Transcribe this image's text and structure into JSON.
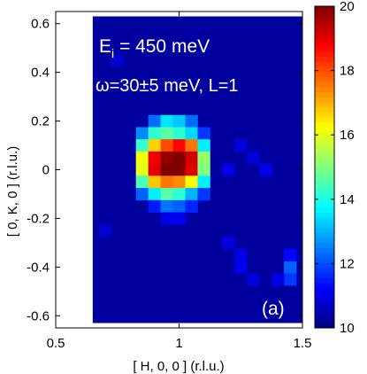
{
  "chart_data": {
    "type": "heatmap",
    "xlabel": "[ H, 0, 0 ]  (r.l.u.)",
    "ylabel": "[ 0, K, 0 ]  (r.l.u.)",
    "xlim": [
      0.5,
      1.5
    ],
    "ylim": [
      -0.65,
      0.65
    ],
    "x_ticks": [
      0.5,
      1,
      1.5
    ],
    "x_tick_labels": [
      "0.5",
      "1",
      "1.5"
    ],
    "y_ticks": [
      0.6,
      0.4,
      0.2,
      0,
      -0.2,
      -0.4,
      -0.6
    ],
    "y_tick_labels": [
      "0.6",
      "0.4",
      "0.2",
      "0",
      "-0.2",
      "-0.4",
      "-0.6"
    ],
    "colorbar": {
      "range": [
        10,
        20
      ],
      "ticks": [
        10,
        12,
        14,
        16,
        18,
        20
      ],
      "tick_labels": [
        "10",
        "12",
        "14",
        "16",
        "18",
        "20"
      ],
      "colormap": "jet"
    },
    "data_x_range": [
      0.65,
      1.5
    ],
    "data_y_range": [
      -0.63,
      0.63
    ],
    "background_value": 10.3,
    "cells": [
      {
        "h": 0.9,
        "k": 0.2,
        "v": 12.3
      },
      {
        "h": 0.95,
        "k": 0.2,
        "v": 13.5
      },
      {
        "h": 1.0,
        "k": 0.2,
        "v": 13.2
      },
      {
        "h": 1.05,
        "k": 0.2,
        "v": 12.3
      },
      {
        "h": 0.85,
        "k": 0.15,
        "v": 12.6
      },
      {
        "h": 0.9,
        "k": 0.15,
        "v": 14.2
      },
      {
        "h": 0.95,
        "k": 0.15,
        "v": 14.6
      },
      {
        "h": 1.0,
        "k": 0.15,
        "v": 14.2
      },
      {
        "h": 1.05,
        "k": 0.15,
        "v": 13.4
      },
      {
        "h": 1.1,
        "k": 0.15,
        "v": 11.8
      },
      {
        "h": 0.85,
        "k": 0.1,
        "v": 14.3
      },
      {
        "h": 0.9,
        "k": 0.1,
        "v": 16.7
      },
      {
        "h": 0.95,
        "k": 0.1,
        "v": 18.0
      },
      {
        "h": 1.0,
        "k": 0.1,
        "v": 18.7
      },
      {
        "h": 1.05,
        "k": 0.1,
        "v": 17.6
      },
      {
        "h": 1.1,
        "k": 0.1,
        "v": 13.6
      },
      {
        "h": 0.85,
        "k": 0.05,
        "v": 16.1
      },
      {
        "h": 0.9,
        "k": 0.05,
        "v": 18.9
      },
      {
        "h": 0.95,
        "k": 0.05,
        "v": 19.8
      },
      {
        "h": 1.0,
        "k": 0.05,
        "v": 20.0
      },
      {
        "h": 1.05,
        "k": 0.05,
        "v": 19.2
      },
      {
        "h": 1.1,
        "k": 0.05,
        "v": 15.2
      },
      {
        "h": 0.85,
        "k": 0.0,
        "v": 16.0
      },
      {
        "h": 0.9,
        "k": 0.0,
        "v": 19.0
      },
      {
        "h": 0.95,
        "k": 0.0,
        "v": 20.0
      },
      {
        "h": 1.0,
        "k": 0.0,
        "v": 20.0
      },
      {
        "h": 1.05,
        "k": 0.0,
        "v": 19.0
      },
      {
        "h": 1.1,
        "k": 0.0,
        "v": 15.0
      },
      {
        "h": 0.85,
        "k": -0.05,
        "v": 14.5
      },
      {
        "h": 0.9,
        "k": -0.05,
        "v": 16.8
      },
      {
        "h": 0.95,
        "k": -0.05,
        "v": 17.6
      },
      {
        "h": 1.0,
        "k": -0.05,
        "v": 17.4
      },
      {
        "h": 1.05,
        "k": -0.05,
        "v": 16.2
      },
      {
        "h": 1.1,
        "k": -0.05,
        "v": 13.6
      },
      {
        "h": 0.85,
        "k": -0.1,
        "v": 12.2
      },
      {
        "h": 0.9,
        "k": -0.1,
        "v": 13.6
      },
      {
        "h": 0.95,
        "k": -0.1,
        "v": 14.6
      },
      {
        "h": 1.0,
        "k": -0.1,
        "v": 14.2
      },
      {
        "h": 1.05,
        "k": -0.1,
        "v": 13.0
      },
      {
        "h": 1.1,
        "k": -0.1,
        "v": 11.8
      },
      {
        "h": 0.9,
        "k": -0.15,
        "v": 11.5
      },
      {
        "h": 0.95,
        "k": -0.15,
        "v": 12.4
      },
      {
        "h": 1.0,
        "k": -0.15,
        "v": 12.2
      },
      {
        "h": 1.05,
        "k": -0.15,
        "v": 11.6
      },
      {
        "h": 0.95,
        "k": -0.2,
        "v": 11.0
      },
      {
        "h": 1.0,
        "k": -0.2,
        "v": 11.1
      },
      {
        "h": 1.2,
        "k": 0.0,
        "v": 11.0
      },
      {
        "h": 1.25,
        "k": 0.1,
        "v": 10.9
      },
      {
        "h": 1.3,
        "k": 0.05,
        "v": 10.9
      },
      {
        "h": 1.35,
        "k": 0.0,
        "v": 11.0
      },
      {
        "h": 1.2,
        "k": -0.3,
        "v": 10.9
      },
      {
        "h": 1.25,
        "k": -0.35,
        "v": 11.0
      },
      {
        "h": 1.25,
        "k": -0.4,
        "v": 11.1
      },
      {
        "h": 1.3,
        "k": -0.45,
        "v": 10.9
      },
      {
        "h": 1.45,
        "k": -0.4,
        "v": 12.2
      },
      {
        "h": 1.45,
        "k": -0.45,
        "v": 11.8
      },
      {
        "h": 1.45,
        "k": -0.35,
        "v": 11.3
      },
      {
        "h": 1.4,
        "k": -0.45,
        "v": 11.0
      },
      {
        "h": 0.75,
        "k": 0.45,
        "v": 10.8
      },
      {
        "h": 0.7,
        "k": -0.25,
        "v": 10.8
      }
    ]
  },
  "annotations": {
    "energy_prefix": "E",
    "energy_sub": "i",
    "energy_rest": " = 450 meV",
    "conditions": "ω=30±5 meV, L=1",
    "panel": "(a)"
  }
}
